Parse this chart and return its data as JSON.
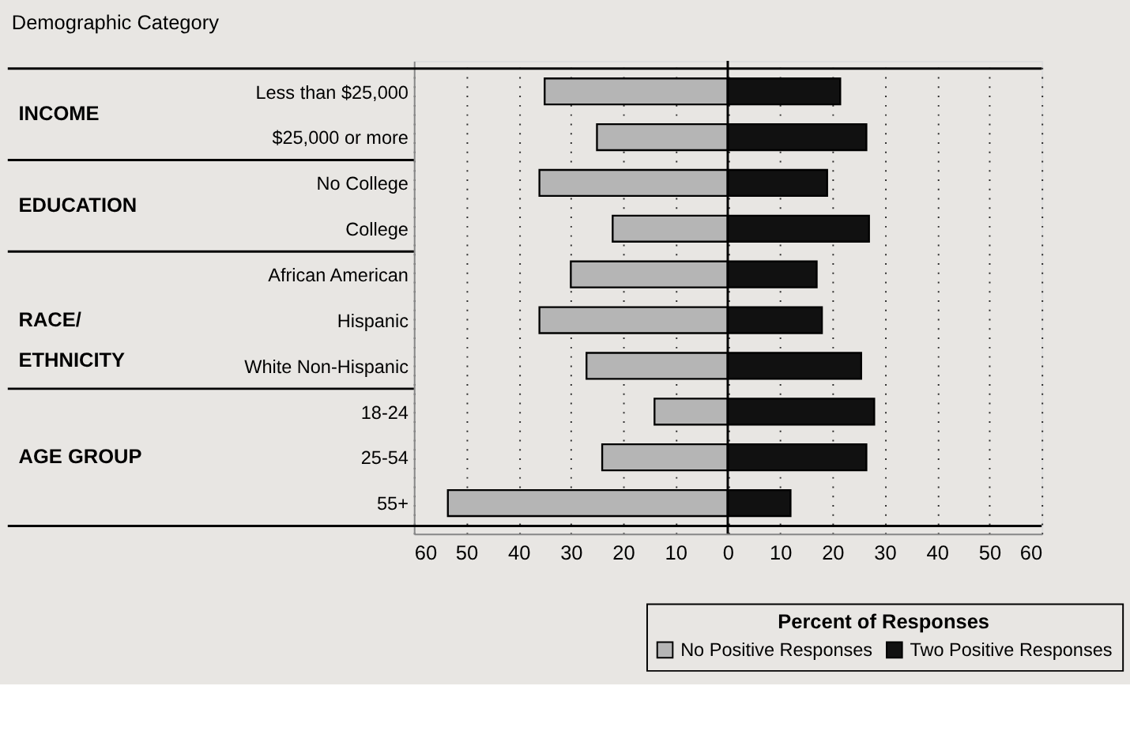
{
  "chart_data": {
    "type": "bar",
    "orientation": "horizontal",
    "ylabel": "Demographic Category",
    "legend_title": "Percent of Responses",
    "categories": [
      "Less than $25,000",
      "$25,000 or more",
      "No College",
      "College",
      "African American",
      "Hispanic",
      "White Non-Hispanic",
      "18-24",
      "25-54",
      "55+"
    ],
    "series": [
      {
        "name": "No Positive Responses",
        "color": "#b5b5b5",
        "values": [
          -35,
          -25,
          -36,
          -22,
          -30,
          -36,
          -27,
          -14,
          -24,
          -53.5
        ]
      },
      {
        "name": "Two Positive Responses",
        "color": "#111111",
        "values": [
          21.5,
          26.5,
          19,
          27,
          17,
          18,
          25.5,
          28,
          26.5,
          12
        ]
      }
    ],
    "xlim": [
      -60,
      60
    ],
    "xticks": [
      {
        "value": -60,
        "label": "60"
      },
      {
        "value": -50,
        "label": "50"
      },
      {
        "value": -40,
        "label": "40"
      },
      {
        "value": -30,
        "label": "30"
      },
      {
        "value": -20,
        "label": "20"
      },
      {
        "value": -10,
        "label": "10"
      },
      0,
      10,
      20,
      30,
      40,
      50,
      60
    ],
    "annotations": [
      "INCOME",
      "EDUCATION",
      "RACE/\nETHNICITY",
      "AGE GROUP"
    ],
    "stacked": true,
    "grid": "x",
    "line_style": "dotted",
    "legend": "bottom right"
  }
}
